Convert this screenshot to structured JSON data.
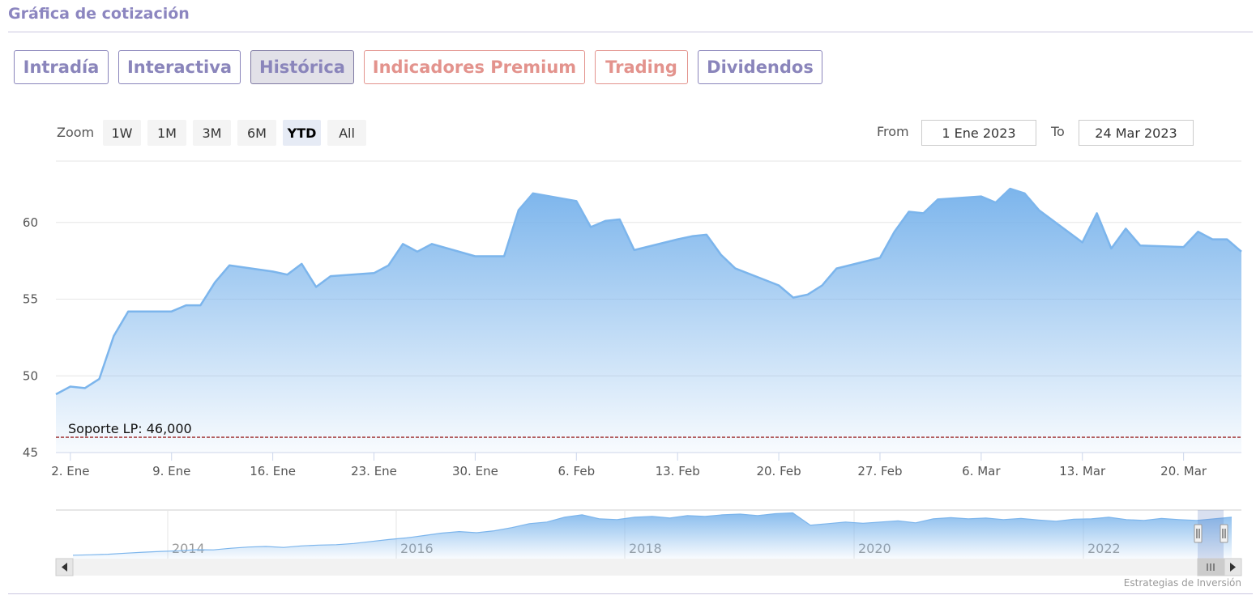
{
  "header": {
    "title": "Gráfica de cotización"
  },
  "tabs": [
    {
      "label": "Intradía",
      "style": "normal"
    },
    {
      "label": "Interactiva",
      "style": "normal"
    },
    {
      "label": "Histórica",
      "style": "active"
    },
    {
      "label": "Indicadores Premium",
      "style": "premium"
    },
    {
      "label": "Trading",
      "style": "premium"
    },
    {
      "label": "Dividendos",
      "style": "normal"
    }
  ],
  "range_selector": {
    "zoom_label": "Zoom",
    "buttons": [
      "1W",
      "1M",
      "3M",
      "6M",
      "YTD",
      "All"
    ],
    "selected": "YTD",
    "from_label": "From",
    "from_value": "1 Ene 2023",
    "to_label": "To",
    "to_value": "24 Mar 2023"
  },
  "colors": {
    "accent": "#8a85bb",
    "premium": "#e3938d",
    "series_line": "#7cb5ec",
    "support_line": "#8b0000"
  },
  "chart_data": {
    "type": "area",
    "title": "",
    "xlabel": "",
    "ylabel": "",
    "ylim": [
      45,
      64
    ],
    "yticks": [
      45,
      50,
      55,
      60
    ],
    "x_start": "2023-01-01",
    "x_end": "2023-03-24",
    "xticks": [
      {
        "date": "2023-01-02",
        "label": "2. Ene"
      },
      {
        "date": "2023-01-09",
        "label": "9. Ene"
      },
      {
        "date": "2023-01-16",
        "label": "16. Ene"
      },
      {
        "date": "2023-01-23",
        "label": "23. Ene"
      },
      {
        "date": "2023-01-30",
        "label": "30. Ene"
      },
      {
        "date": "2023-02-06",
        "label": "6. Feb"
      },
      {
        "date": "2023-02-13",
        "label": "13. Feb"
      },
      {
        "date": "2023-02-20",
        "label": "20. Feb"
      },
      {
        "date": "2023-02-27",
        "label": "27. Feb"
      },
      {
        "date": "2023-03-06",
        "label": "6. Mar"
      },
      {
        "date": "2023-03-13",
        "label": "13. Mar"
      },
      {
        "date": "2023-03-20",
        "label": "20. Mar"
      }
    ],
    "grid": true,
    "legend": "none",
    "series": [
      {
        "points": [
          [
            "2023-01-01",
            48.8
          ],
          [
            "2023-01-02",
            49.3
          ],
          [
            "2023-01-03",
            49.2
          ],
          [
            "2023-01-04",
            49.8
          ],
          [
            "2023-01-05",
            52.6
          ],
          [
            "2023-01-06",
            54.2
          ],
          [
            "2023-01-09",
            54.2
          ],
          [
            "2023-01-10",
            54.6
          ],
          [
            "2023-01-11",
            54.6
          ],
          [
            "2023-01-12",
            56.1
          ],
          [
            "2023-01-13",
            57.2
          ],
          [
            "2023-01-16",
            56.8
          ],
          [
            "2023-01-17",
            56.6
          ],
          [
            "2023-01-18",
            57.3
          ],
          [
            "2023-01-19",
            55.8
          ],
          [
            "2023-01-20",
            56.5
          ],
          [
            "2023-01-23",
            56.7
          ],
          [
            "2023-01-24",
            57.2
          ],
          [
            "2023-01-25",
            58.6
          ],
          [
            "2023-01-26",
            58.1
          ],
          [
            "2023-01-27",
            58.6
          ],
          [
            "2023-01-30",
            57.8
          ],
          [
            "2023-01-31",
            57.8
          ],
          [
            "2023-02-01",
            57.8
          ],
          [
            "2023-02-02",
            60.8
          ],
          [
            "2023-02-03",
            61.9
          ],
          [
            "2023-02-06",
            61.4
          ],
          [
            "2023-02-07",
            59.7
          ],
          [
            "2023-02-08",
            60.1
          ],
          [
            "2023-02-09",
            60.2
          ],
          [
            "2023-02-10",
            58.2
          ],
          [
            "2023-02-13",
            58.9
          ],
          [
            "2023-02-14",
            59.1
          ],
          [
            "2023-02-15",
            59.2
          ],
          [
            "2023-02-16",
            57.9
          ],
          [
            "2023-02-17",
            57.0
          ],
          [
            "2023-02-20",
            55.9
          ],
          [
            "2023-02-21",
            55.1
          ],
          [
            "2023-02-22",
            55.3
          ],
          [
            "2023-02-23",
            55.9
          ],
          [
            "2023-02-24",
            57.0
          ],
          [
            "2023-02-27",
            57.7
          ],
          [
            "2023-02-28",
            59.4
          ],
          [
            "2023-03-01",
            60.7
          ],
          [
            "2023-03-02",
            60.6
          ],
          [
            "2023-03-03",
            61.5
          ],
          [
            "2023-03-06",
            61.7
          ],
          [
            "2023-03-07",
            61.3
          ],
          [
            "2023-03-08",
            62.2
          ],
          [
            "2023-03-09",
            61.9
          ],
          [
            "2023-03-10",
            60.8
          ],
          [
            "2023-03-13",
            58.7
          ],
          [
            "2023-03-14",
            60.6
          ],
          [
            "2023-03-15",
            58.3
          ],
          [
            "2023-03-16",
            59.6
          ],
          [
            "2023-03-17",
            58.5
          ],
          [
            "2023-03-20",
            58.4
          ],
          [
            "2023-03-21",
            59.4
          ],
          [
            "2023-03-22",
            58.9
          ],
          [
            "2023-03-23",
            58.9
          ],
          [
            "2023-03-24",
            58.1
          ]
        ]
      }
    ],
    "plot_lines": [
      {
        "value": 46,
        "label": "Soporte LP: 46,000",
        "style": "dashed"
      }
    ],
    "navigator": {
      "year_labels": [
        "2014",
        "2016",
        "2018",
        "2020",
        "2022"
      ],
      "values": [
        10.2,
        10.8,
        11.5,
        12.8,
        14.0,
        15.0,
        15.8,
        17.2,
        17.0,
        19.0,
        20.5,
        21.2,
        20.0,
        22.0,
        23.0,
        23.5,
        25.0,
        27.5,
        30.0,
        32.0,
        35.0,
        38.0,
        40.0,
        38.5,
        41.0,
        45.0,
        50.0,
        52.0,
        58.0,
        61.0,
        56.0,
        55.0,
        58.0,
        59.0,
        57.0,
        60.0,
        59.0,
        61.0,
        62.0,
        60.0,
        62.5,
        63.5,
        48.0,
        50.0,
        52.0,
        50.5,
        52.0,
        53.5,
        51.0,
        56.0,
        57.5,
        56.0,
        57.0,
        55.0,
        56.5,
        54.5,
        53.0,
        55.5,
        56.0,
        58.0,
        55.0,
        54.0,
        56.5,
        55.0,
        54.0,
        56.0,
        58.0
      ]
    }
  },
  "credit": "Estrategias de Inversión"
}
